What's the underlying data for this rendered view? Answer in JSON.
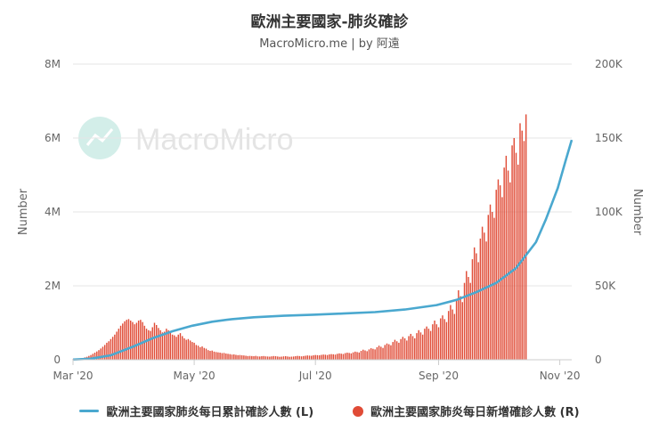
{
  "header": {
    "title": "歐洲主要國家-肺炎確診",
    "subtitle": "MacroMicro.me | by 阿遠"
  },
  "watermark": {
    "text": "MacroMicro",
    "icon": "chart-line-icon"
  },
  "colors": {
    "line": "#4aa8cf",
    "bar": "#e04b36",
    "grid": "#e6e6e6",
    "axis_text": "#666666"
  },
  "chart_data": {
    "type": "bar+line",
    "title": "歐洲主要國家-肺炎確診",
    "subtitle": "MacroMicro.me | by 阿遠",
    "x_axis": {
      "type": "date",
      "min": "2020-03-01",
      "max": "2020-11-07",
      "ticks": [
        "2020-03-01",
        "2020-05-01",
        "2020-07-01",
        "2020-09-01",
        "2020-11-01"
      ],
      "tick_labels": [
        "Mar '20",
        "May '20",
        "Jul '20",
        "Sep '20",
        "Nov '20"
      ]
    },
    "y_left": {
      "label": "Number",
      "min": 0,
      "max": 8000000,
      "ticks": [
        0,
        2000000,
        4000000,
        6000000,
        8000000
      ],
      "tick_labels": [
        "0",
        "2M",
        "4M",
        "6M",
        "8M"
      ]
    },
    "y_right": {
      "label": "Number",
      "min": 0,
      "max": 200000,
      "ticks": [
        0,
        50000,
        100000,
        150000,
        200000
      ],
      "tick_labels": [
        "0",
        "50K",
        "100K",
        "150K",
        "200K"
      ]
    },
    "grid": true,
    "legend_position": "bottom",
    "series": [
      {
        "name": "歐洲主要國家肺炎每日累計確診人數 (L)",
        "type": "line",
        "axis": "left",
        "points": [
          [
            "2020-03-01",
            5000
          ],
          [
            "2020-03-10",
            30000
          ],
          [
            "2020-03-20",
            120000
          ],
          [
            "2020-03-31",
            350000
          ],
          [
            "2020-04-10",
            580000
          ],
          [
            "2020-04-20",
            770000
          ],
          [
            "2020-04-30",
            920000
          ],
          [
            "2020-05-10",
            1030000
          ],
          [
            "2020-05-20",
            1100000
          ],
          [
            "2020-05-31",
            1150000
          ],
          [
            "2020-06-15",
            1190000
          ],
          [
            "2020-06-30",
            1220000
          ],
          [
            "2020-07-15",
            1250000
          ],
          [
            "2020-07-31",
            1290000
          ],
          [
            "2020-08-15",
            1360000
          ],
          [
            "2020-08-31",
            1480000
          ],
          [
            "2020-09-10",
            1620000
          ],
          [
            "2020-09-20",
            1830000
          ],
          [
            "2020-09-30",
            2080000
          ],
          [
            "2020-10-10",
            2480000
          ],
          [
            "2020-10-20",
            3180000
          ],
          [
            "2020-10-25",
            3800000
          ],
          [
            "2020-10-31",
            4650000
          ],
          [
            "2020-11-04",
            5400000
          ],
          [
            "2020-11-07",
            5950000
          ]
        ]
      },
      {
        "name": "歐洲主要國家肺炎每日新增確診人數 (R)",
        "type": "bar",
        "axis": "right",
        "start": "2020-03-01",
        "step_days": 1,
        "values": [
          200,
          300,
          500,
          700,
          900,
          1200,
          1600,
          2000,
          2600,
          3200,
          4000,
          4800,
          5600,
          6500,
          7600,
          8800,
          10000,
          11500,
          12500,
          14000,
          15500,
          17000,
          19000,
          21000,
          23000,
          24500,
          26000,
          27000,
          27500,
          26500,
          25500,
          24000,
          25000,
          26500,
          27000,
          25500,
          23000,
          21000,
          20000,
          19500,
          22000,
          25000,
          23500,
          21500,
          20000,
          18500,
          19000,
          21000,
          20000,
          18500,
          17000,
          16500,
          15500,
          17000,
          18000,
          16000,
          14500,
          13500,
          14000,
          13000,
          12000,
          11500,
          10000,
          9500,
          8500,
          9000,
          8000,
          7500,
          6500,
          6000,
          6200,
          5500,
          5200,
          5000,
          4800,
          4500,
          4600,
          4200,
          4000,
          3800,
          3500,
          3600,
          3300,
          3100,
          3200,
          3000,
          2900,
          2700,
          2500,
          2600,
          2500,
          2400,
          2600,
          2300,
          2200,
          2400,
          2500,
          2300,
          2200,
          2100,
          2300,
          2500,
          2400,
          2200,
          2000,
          2100,
          2300,
          2400,
          2200,
          2000,
          2100,
          2200,
          2400,
          2600,
          2500,
          2300,
          2500,
          2700,
          2900,
          2800,
          2700,
          3000,
          3200,
          3100,
          3000,
          3300,
          3500,
          3400,
          3200,
          3600,
          3800,
          3700,
          3500,
          4000,
          4300,
          4100,
          3900,
          4500,
          4800,
          4600,
          4300,
          5000,
          5500,
          5200,
          4900,
          6000,
          6800,
          6300,
          5800,
          7000,
          7800,
          7400,
          7000,
          8500,
          9500,
          8800,
          8000,
          10000,
          11000,
          10500,
          9800,
          12000,
          13500,
          12500,
          11500,
          14000,
          15500,
          14500,
          13000,
          16000,
          17500,
          16000,
          14500,
          18000,
          20000,
          18500,
          17000,
          21000,
          22500,
          21000,
          19500,
          24000,
          26500,
          24000,
          22000,
          28000,
          30000,
          27500,
          25500,
          33000,
          37000,
          34000,
          31000,
          41000,
          47000,
          43000,
          39000,
          52000,
          60000,
          56000,
          52000,
          68000,
          76000,
          72000,
          66000,
          82000,
          90000,
          86000,
          80000,
          98000,
          105000,
          100000,
          96000,
          115000,
          122000,
          118000,
          110000,
          130000,
          138000,
          128000,
          120000,
          145000,
          150000,
          140000,
          132000,
          160000,
          155000,
          148000,
          166000
        ]
      }
    ]
  }
}
